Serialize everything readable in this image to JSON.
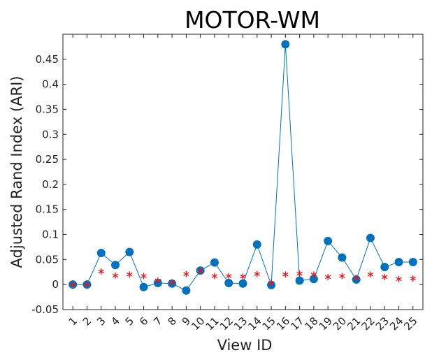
{
  "chart_data": {
    "type": "scatter",
    "title": "MOTOR-WM",
    "xlabel": "View ID",
    "ylabel": "Adjusted Rand Index (ARI)",
    "xlim": [
      0.3,
      25.7
    ],
    "ylim": [
      -0.05,
      0.5
    ],
    "yticks": [
      -0.05,
      0,
      0.05,
      0.1,
      0.15,
      0.2,
      0.25,
      0.3,
      0.35,
      0.4,
      0.45
    ],
    "ytick_labels": [
      "-0.05",
      "0",
      "0.05",
      "0.1",
      "0.15",
      "0.2",
      "0.25",
      "0.3",
      "0.35",
      "0.4",
      "0.45"
    ],
    "categories": [
      "1",
      "2",
      "3",
      "4",
      "5",
      "6",
      "7",
      "8",
      "9",
      "10",
      "11",
      "12",
      "13",
      "14",
      "15",
      "16",
      "17",
      "18",
      "19",
      "20",
      "21",
      "22",
      "23",
      "24",
      "25"
    ],
    "grid": false,
    "series": [
      {
        "marker": "circle-line",
        "color": "#0072BD",
        "values": [
          0,
          0,
          0.063,
          0.039,
          0.065,
          -0.005,
          0.003,
          0.002,
          -0.012,
          0.028,
          0.044,
          0.003,
          0.002,
          0.08,
          -0.001,
          0.48,
          0.008,
          0.011,
          0.087,
          0.054,
          0.01,
          0.093,
          0.035,
          0.045,
          0.045
        ]
      },
      {
        "marker": "asterisk",
        "color": "#E8151B",
        "values": [
          0,
          0,
          0.026,
          0.018,
          0.02,
          0.017,
          0.008,
          0.004,
          0.021,
          0.027,
          0.017,
          0.017,
          0.016,
          0.021,
          0.003,
          0.02,
          0.022,
          0.02,
          0.015,
          0.017,
          0.013,
          0.02,
          0.015,
          0.011,
          0.012
        ]
      }
    ]
  }
}
